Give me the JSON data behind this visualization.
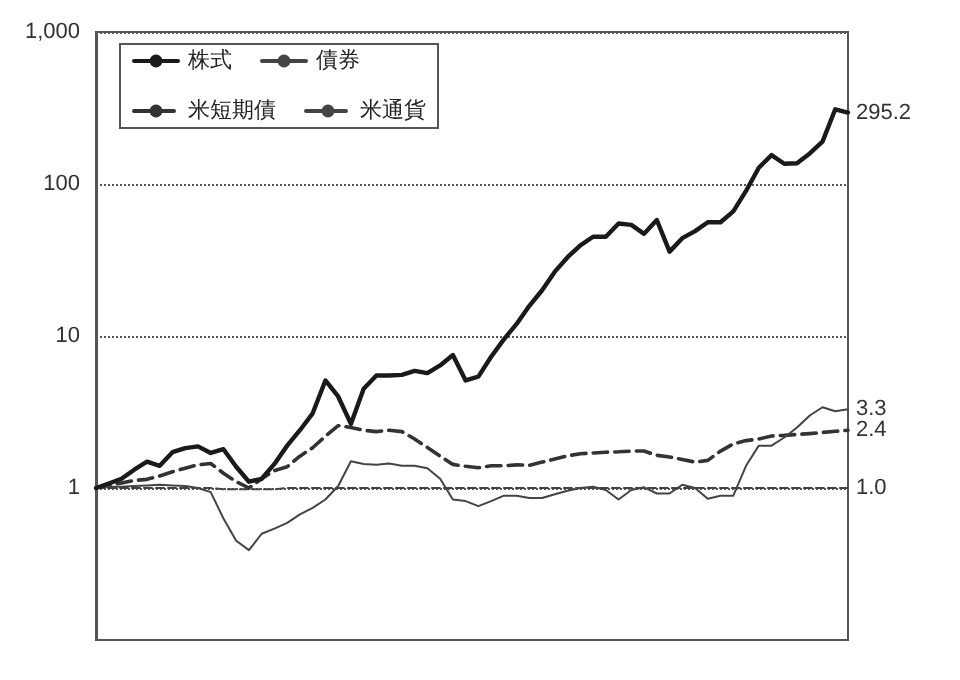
{
  "chart_data": {
    "type": "line",
    "log": "y",
    "grid": "y",
    "legend": "top left",
    "tick_labels": "y",
    "categories": [
      null,
      null,
      null,
      null,
      null,
      null,
      null,
      null,
      null,
      null,
      null,
      null,
      null,
      null,
      null,
      null,
      null,
      null,
      null,
      null,
      null,
      null,
      null,
      null,
      null,
      null,
      null,
      null,
      null,
      null,
      null,
      null,
      null,
      null,
      null,
      null,
      null,
      null,
      null,
      null,
      null,
      null,
      null,
      null,
      null,
      null,
      null,
      null,
      null,
      null,
      null,
      null,
      null,
      null,
      null,
      null,
      null,
      null,
      null,
      null
    ],
    "ylim": [
      0.1,
      1000
    ],
    "yticks": [
      1,
      10,
      100,
      {
        "value": 1000,
        "label": "1,000"
      }
    ],
    "series": [
      {
        "name": "株式",
        "color": "#1a1a1a",
        "line_style": "solid",
        "values": [
          1.0,
          1.07,
          1.15,
          1.32,
          1.49,
          1.4,
          1.72,
          1.83,
          1.88,
          1.7,
          1.8,
          1.38,
          1.1,
          1.15,
          1.44,
          1.9,
          2.4,
          3.1,
          5.1,
          4.0,
          2.64,
          4.5,
          5.5,
          5.5,
          5.55,
          5.9,
          5.7,
          6.4,
          7.5,
          5.1,
          5.4,
          7.3,
          9.5,
          12,
          15.8,
          20,
          26.5,
          33,
          39.5,
          45,
          45,
          55,
          53.8,
          47,
          58,
          35.9,
          44,
          49,
          56,
          56,
          66,
          90,
          128,
          155,
          136,
          137,
          159,
          190,
          310,
          295.2
        ],
        "value_labels": [
          null,
          null,
          null,
          null,
          null,
          null,
          null,
          null,
          null,
          null,
          null,
          null,
          null,
          null,
          null,
          null,
          null,
          null,
          null,
          null,
          null,
          null,
          null,
          null,
          null,
          null,
          null,
          null,
          null,
          null,
          null,
          null,
          null,
          null,
          null,
          null,
          null,
          null,
          null,
          null,
          null,
          null,
          null,
          null,
          null,
          null,
          null,
          null,
          null,
          null,
          null,
          null,
          null,
          null,
          null,
          null,
          null,
          null,
          null,
          "295.2"
        ]
      },
      {
        "name": "債券",
        "color": "#444444",
        "line_style": "solid",
        "values": [
          1.0,
          1.02,
          1.02,
          1.03,
          1.04,
          1.05,
          1.04,
          1.03,
          1.0,
          0.94,
          0.63,
          0.45,
          0.39,
          0.5,
          0.54,
          0.59,
          0.67,
          0.74,
          0.84,
          1.03,
          1.5,
          1.44,
          1.42,
          1.45,
          1.4,
          1.4,
          1.35,
          1.15,
          0.84,
          0.82,
          0.76,
          0.82,
          0.89,
          0.89,
          0.86,
          0.86,
          0.91,
          0.96,
          1.0,
          1.02,
          0.97,
          0.84,
          0.97,
          1.01,
          0.92,
          0.92,
          1.05,
          1.0,
          0.85,
          0.89,
          0.89,
          1.4,
          1.9,
          1.9,
          2.15,
          2.5,
          3.0,
          3.4,
          3.2,
          3.3
        ],
        "value_labels": [
          null,
          null,
          null,
          null,
          null,
          null,
          null,
          null,
          null,
          null,
          null,
          null,
          null,
          null,
          null,
          null,
          null,
          null,
          null,
          null,
          null,
          null,
          null,
          null,
          null,
          null,
          null,
          null,
          null,
          null,
          null,
          null,
          null,
          null,
          null,
          null,
          null,
          null,
          null,
          null,
          null,
          null,
          null,
          null,
          null,
          null,
          null,
          null,
          null,
          null,
          null,
          null,
          null,
          null,
          null,
          null,
          null,
          null,
          null,
          "3.3"
        ]
      },
      {
        "name": "米短期債",
        "color": "#333333",
        "line_style": "dashed",
        "values": [
          1.0,
          1.04,
          1.08,
          1.12,
          1.14,
          1.2,
          1.28,
          1.35,
          1.42,
          1.45,
          1.25,
          1.1,
          1.0,
          1.15,
          1.3,
          1.38,
          1.62,
          1.84,
          2.19,
          2.57,
          2.5,
          2.4,
          2.35,
          2.4,
          2.35,
          2.1,
          1.85,
          1.62,
          1.43,
          1.39,
          1.36,
          1.4,
          1.4,
          1.42,
          1.41,
          1.48,
          1.55,
          1.63,
          1.68,
          1.7,
          1.72,
          1.73,
          1.75,
          1.75,
          1.64,
          1.6,
          1.54,
          1.48,
          1.52,
          1.75,
          1.95,
          2.05,
          2.1,
          2.2,
          2.22,
          2.25,
          2.28,
          2.32,
          2.36,
          2.4
        ],
        "value_labels": [
          null,
          null,
          null,
          null,
          null,
          null,
          null,
          null,
          null,
          null,
          null,
          null,
          null,
          null,
          null,
          null,
          null,
          null,
          null,
          null,
          null,
          null,
          null,
          null,
          null,
          null,
          null,
          null,
          null,
          null,
          null,
          null,
          null,
          null,
          null,
          null,
          null,
          null,
          null,
          null,
          null,
          null,
          null,
          null,
          null,
          null,
          null,
          null,
          null,
          null,
          null,
          null,
          null,
          null,
          null,
          null,
          null,
          null,
          null,
          "2.4"
        ]
      },
      {
        "name": "米通貨",
        "color": "#444444",
        "line_style": "dashed",
        "values": [
          1.0,
          1.0,
          1.0,
          1.0,
          1.0,
          1.0,
          1.0,
          1.0,
          1.0,
          1.0,
          0.98,
          0.98,
          0.98,
          0.98,
          0.98,
          1.0,
          1.0,
          1.0,
          1.0,
          1.0,
          1.0,
          1.0,
          1.0,
          1.0,
          1.0,
          1.0,
          1.0,
          1.0,
          1.0,
          1.0,
          1.0,
          1.0,
          1.0,
          1.0,
          1.0,
          1.0,
          1.0,
          1.0,
          1.0,
          1.0,
          1.0,
          1.0,
          1.0,
          1.0,
          1.0,
          1.0,
          1.0,
          1.0,
          1.0,
          1.0,
          1.0,
          1.0,
          1.0,
          1.0,
          1.0,
          1.0,
          1.0,
          1.0,
          1.0,
          1.0
        ],
        "value_labels": [
          null,
          null,
          null,
          null,
          null,
          null,
          null,
          null,
          null,
          null,
          null,
          null,
          null,
          null,
          null,
          null,
          null,
          null,
          null,
          null,
          null,
          null,
          null,
          null,
          null,
          null,
          null,
          null,
          null,
          null,
          null,
          null,
          null,
          null,
          null,
          null,
          null,
          null,
          null,
          null,
          null,
          null,
          null,
          null,
          null,
          null,
          null,
          null,
          null,
          null,
          null,
          null,
          null,
          null,
          null,
          null,
          null,
          null,
          null,
          "1.0"
        ]
      }
    ]
  }
}
